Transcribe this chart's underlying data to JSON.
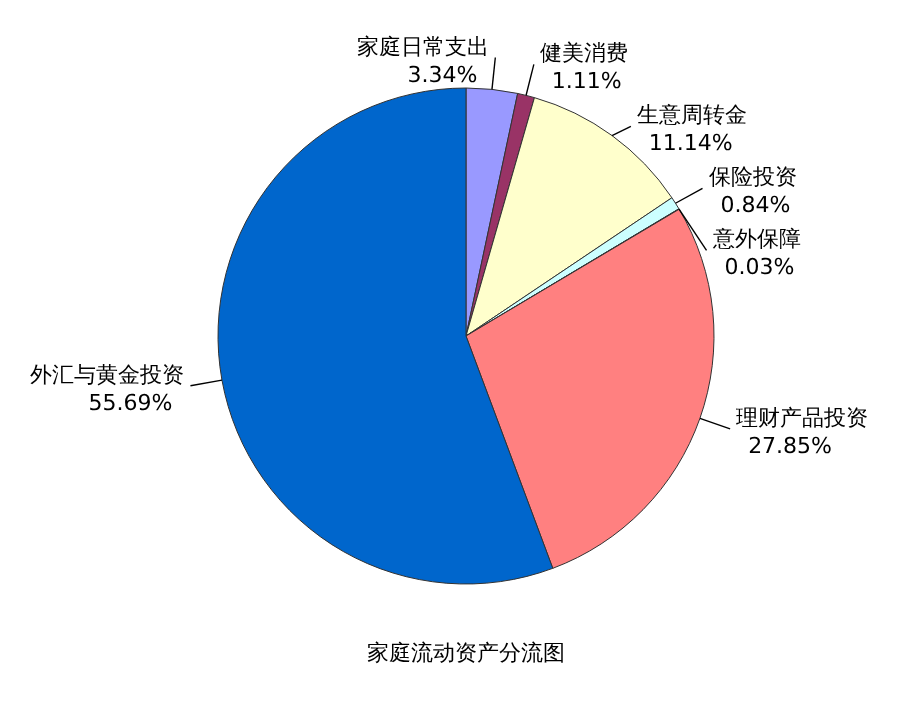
{
  "chart_data": {
    "type": "pie",
    "title": "家庭流动资产分流图",
    "categories": [
      "家庭日常支出",
      "健美消费",
      "生意周转金",
      "保险投资",
      "意外保障",
      "理财产品投资",
      "外汇与黄金投资"
    ],
    "values": [
      3.34,
      1.11,
      11.14,
      0.84,
      0.03,
      27.85,
      55.69
    ],
    "value_labels": [
      "3.34%",
      "1.11%",
      "11.14%",
      "0.84%",
      "0.03%",
      "27.85%",
      "55.69%"
    ],
    "colors": [
      "#9999ff",
      "#993366",
      "#ffffcc",
      "#ccffff",
      "#660066",
      "#ff8080",
      "#0066cc"
    ]
  }
}
